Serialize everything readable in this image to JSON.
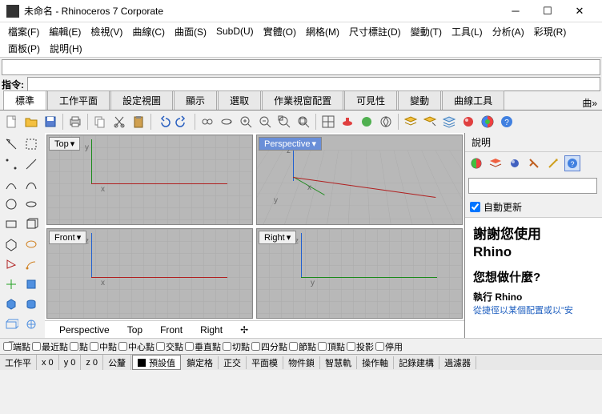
{
  "window": {
    "title": "未命名 - Rhinoceros 7 Corporate"
  },
  "menu": {
    "row1": [
      "檔案(F)",
      "編輯(E)",
      "檢視(V)",
      "曲線(C)",
      "曲面(S)",
      "SubD(U)",
      "實體(O)",
      "網格(M)",
      "尺寸標註(D)",
      "變動(T)",
      "工具(L)",
      "分析(A)",
      "彩現(R)"
    ],
    "row2": [
      "面板(P)",
      "說明(H)"
    ]
  },
  "command": {
    "label": "指令:",
    "value": ""
  },
  "tooltabs": [
    "標準",
    "工作平面",
    "設定視圖",
    "顯示",
    "選取",
    "作業視窗配置",
    "可見性",
    "變動",
    "曲線工具"
  ],
  "tooltabs_more": "曲»",
  "viewports": {
    "top": "Top",
    "perspective": "Perspective",
    "front": "Front",
    "right": "Right",
    "axis_top_v": "y",
    "axis_top_h": "x",
    "axis_persp_v": "z",
    "axis_persp_h": "x",
    "axis_persp_d": "y",
    "axis_front_v": "z",
    "axis_front_h": "x",
    "axis_right_v": "z",
    "axis_right_h": "y"
  },
  "vtabs": [
    "Perspective",
    "Top",
    "Front",
    "Right",
    "✢"
  ],
  "help_panel": {
    "title": "說明",
    "auto_update": "自動更新",
    "h3a": "謝謝您使用",
    "h3b": "Rhino",
    "h4": "您想做什麼?",
    "sub": "執行 Rhino",
    "link": "從捷徑以某個配置或以\"安"
  },
  "osnap": [
    "端點",
    "最近點",
    "點",
    "中點",
    "中心點",
    "交點",
    "垂直點",
    "切點",
    "四分點",
    "節點",
    "頂點",
    "投影",
    "停用"
  ],
  "status": {
    "cplane": "工作平",
    "x": "x 0",
    "y": "y 0",
    "z": "z 0",
    "unit": "公釐",
    "layer_lbl": "預設值",
    "rest": [
      "鎖定格",
      "正交",
      "平面模",
      "物件鎖",
      "智慧軌",
      "操作軸",
      "記錄建構",
      "過濾器"
    ]
  }
}
